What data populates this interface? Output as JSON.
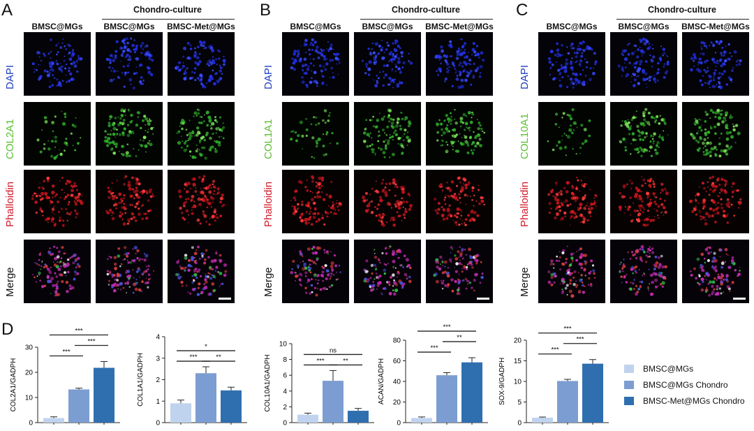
{
  "panels": [
    {
      "letter": "A",
      "group_label": "Chondro-culture",
      "columns": [
        "BMSC@MGs",
        "BMSC@MGs",
        "BMSC-Met@MGs"
      ],
      "rows": [
        {
          "label": "DAPI",
          "color": "#1f3fbf"
        },
        {
          "label": "COL2A1",
          "color": "#5cbf32"
        },
        {
          "label": "Phalloidin",
          "color": "#d11a2a"
        },
        {
          "label": "Merge",
          "color": "#111111"
        }
      ]
    },
    {
      "letter": "B",
      "group_label": "Chondro-culture",
      "columns": [
        "BMSC@MGs",
        "BMSC@MGs",
        "BMSC-Met@MGs"
      ],
      "rows": [
        {
          "label": "DAPI",
          "color": "#1f3fbf"
        },
        {
          "label": "COL1A1",
          "color": "#5cbf32"
        },
        {
          "label": "Phalloidin",
          "color": "#d11a2a"
        },
        {
          "label": "Merge",
          "color": "#111111"
        }
      ]
    },
    {
      "letter": "C",
      "group_label": "Chondro-culture",
      "columns": [
        "BMSC@MGs",
        "BMSC@MGs",
        "BMSC-Met@MGs"
      ],
      "rows": [
        {
          "label": "DAPI",
          "color": "#1f3fbf"
        },
        {
          "label": "COL10A1",
          "color": "#5cbf32"
        },
        {
          "label": "Phalloidin",
          "color": "#d11a2a"
        },
        {
          "label": "Merge",
          "color": "#111111"
        }
      ]
    }
  ],
  "panel_d_letter": "D",
  "legend": [
    {
      "label": "BMSC@MGs",
      "color": "#c0d3ee"
    },
    {
      "label": "BMSC@MGs Chondro",
      "color": "#7c9dd1"
    },
    {
      "label": "BMSC-Met@MGs Chondro",
      "color": "#2f6fb0"
    }
  ],
  "chart_data": [
    {
      "type": "bar",
      "ylabel": "COL2A1/GADPH",
      "categories": [
        "BMSC@MGs",
        "BMSC@MGs Chondro",
        "BMSC-Met@MGs Chondro"
      ],
      "values": [
        1.8,
        13.2,
        21.8
      ],
      "errors": [
        0.5,
        0.5,
        2.5
      ],
      "ylim": [
        0,
        30
      ],
      "yticks": [
        "0",
        "10",
        "20",
        "30"
      ],
      "tick_values": [
        0,
        10,
        20,
        30
      ],
      "significance": [
        {
          "from": 0,
          "to": 1,
          "label": "***",
          "level": 0
        },
        {
          "from": 1,
          "to": 2,
          "label": "***",
          "level": 1
        },
        {
          "from": 0,
          "to": 2,
          "label": "***",
          "level": 2
        }
      ]
    },
    {
      "type": "bar",
      "ylabel": "COL1A1/GADPH",
      "categories": [
        "BMSC@MGs",
        "BMSC@MGs Chondro",
        "BMSC-Met@MGs Chondro"
      ],
      "values": [
        0.9,
        2.3,
        1.5
      ],
      "errors": [
        0.15,
        0.3,
        0.15
      ],
      "ylim": [
        0,
        4
      ],
      "yticks": [
        "0",
        "1",
        "2",
        "3",
        "4"
      ],
      "tick_values": [
        0,
        1,
        2,
        3,
        4
      ],
      "significance": [
        {
          "from": 0,
          "to": 1,
          "label": "***",
          "level": 0
        },
        {
          "from": 1,
          "to": 2,
          "label": "**",
          "level": 0
        },
        {
          "from": 0,
          "to": 2,
          "label": "*",
          "level": 1
        }
      ]
    },
    {
      "type": "bar",
      "ylabel": "COL10A1/GADPH",
      "categories": [
        "BMSC@MGs",
        "BMSC@MGs Chondro",
        "BMSC-Met@MGs Chondro"
      ],
      "values": [
        1.0,
        5.3,
        1.5
      ],
      "errors": [
        0.2,
        1.3,
        0.3
      ],
      "ylim": [
        0,
        10
      ],
      "yticks": [
        "0",
        "2",
        "4",
        "6",
        "8",
        "10"
      ],
      "tick_values": [
        0,
        2,
        4,
        6,
        8,
        10
      ],
      "significance": [
        {
          "from": 0,
          "to": 1,
          "label": "***",
          "level": 0
        },
        {
          "from": 1,
          "to": 2,
          "label": "**",
          "level": 0
        },
        {
          "from": 0,
          "to": 2,
          "label": "ns",
          "level": 1
        }
      ]
    },
    {
      "type": "bar",
      "ylabel": "ACAN/GADPH",
      "categories": [
        "BMSC@MGs",
        "BMSC@MGs Chondro",
        "BMSC-Met@MGs Chondro"
      ],
      "values": [
        4.5,
        46,
        58.5
      ],
      "errors": [
        1.0,
        2.5,
        4.5
      ],
      "ylim": [
        0,
        80
      ],
      "yticks": [
        "0",
        "20",
        "40",
        "60",
        "80"
      ],
      "tick_values": [
        0,
        20,
        40,
        60,
        80
      ],
      "significance": [
        {
          "from": 0,
          "to": 1,
          "label": "***",
          "level": 0
        },
        {
          "from": 1,
          "to": 2,
          "label": "**",
          "level": 1
        },
        {
          "from": 0,
          "to": 2,
          "label": "***",
          "level": 2
        }
      ]
    },
    {
      "type": "bar",
      "ylabel": "SOX-9/GADPH",
      "categories": [
        "BMSC@MGs",
        "BMSC@MGs Chondro",
        "BMSC-Met@MGs Chondro"
      ],
      "values": [
        1.2,
        10.1,
        14.3
      ],
      "errors": [
        0.15,
        0.4,
        1.0
      ],
      "ylim": [
        0,
        20
      ],
      "yticks": [
        "0",
        "5",
        "10",
        "15",
        "20"
      ],
      "tick_values": [
        0,
        5,
        10,
        15,
        20
      ],
      "significance": [
        {
          "from": 0,
          "to": 1,
          "label": "***",
          "level": 0
        },
        {
          "from": 1,
          "to": 2,
          "label": "***",
          "level": 1
        },
        {
          "from": 0,
          "to": 2,
          "label": "***",
          "level": 2
        }
      ]
    }
  ]
}
